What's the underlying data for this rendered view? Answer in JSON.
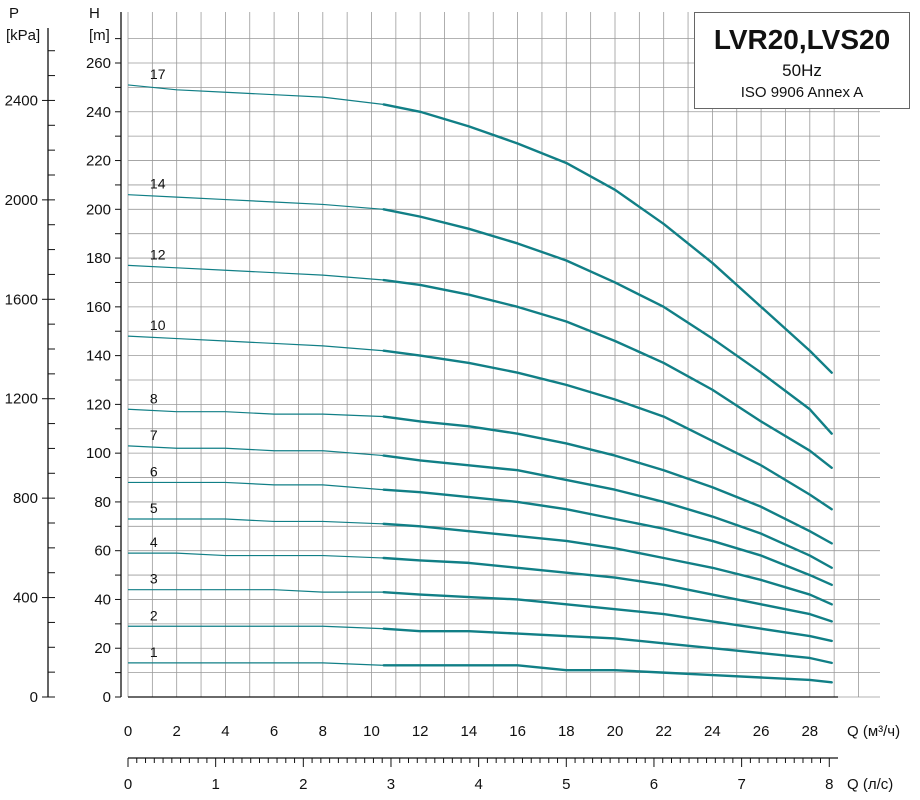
{
  "chart_data": {
    "type": "line",
    "title": "LVR20,LVS20",
    "subtitle": "50Hz",
    "standard": "ISO 9906 Annex A",
    "y_left_label": "P",
    "y_left_unit": "[kPa]",
    "y_label": "H",
    "y_unit": "[m]",
    "x_label": "Q (м³/ч)",
    "x2_label": "Q (л/с)",
    "xlim": [
      0,
      30
    ],
    "ylim": [
      0,
      270
    ],
    "x_ticks": [
      0,
      2,
      4,
      6,
      8,
      10,
      12,
      14,
      16,
      18,
      20,
      22,
      24,
      26,
      28
    ],
    "x2_ticks": [
      0,
      1,
      2,
      3,
      4,
      5,
      6,
      7,
      8
    ],
    "y_ticks": [
      0,
      20,
      40,
      60,
      80,
      100,
      120,
      140,
      160,
      180,
      200,
      220,
      240,
      260
    ],
    "p_ticks": [
      0,
      400,
      800,
      1200,
      1600,
      2000,
      2400
    ],
    "grid": true,
    "line_color": "#117f86",
    "x": [
      0,
      2,
      4,
      6,
      8,
      10.5,
      12,
      14,
      16,
      18,
      20,
      22,
      24,
      26,
      28,
      28.9
    ],
    "series": [
      {
        "name": "17",
        "values": [
          251,
          249,
          248,
          247,
          246,
          243,
          240,
          234,
          227,
          219,
          208,
          194,
          178,
          160,
          142,
          133
        ]
      },
      {
        "name": "14",
        "values": [
          206,
          205,
          204,
          203,
          202,
          200,
          197,
          192,
          186,
          179,
          170,
          160,
          147,
          133,
          118,
          108
        ]
      },
      {
        "name": "12",
        "values": [
          177,
          176,
          175,
          174,
          173,
          171,
          169,
          165,
          160,
          154,
          146,
          137,
          126,
          113,
          101,
          94
        ]
      },
      {
        "name": "10",
        "values": [
          148,
          147,
          146,
          145,
          144,
          142,
          140,
          137,
          133,
          128,
          122,
          115,
          105,
          95,
          83,
          77
        ]
      },
      {
        "name": "8",
        "values": [
          118,
          117,
          117,
          116,
          116,
          115,
          113,
          111,
          108,
          104,
          99,
          93,
          86,
          78,
          68,
          63
        ]
      },
      {
        "name": "7",
        "values": [
          103,
          102,
          102,
          101,
          101,
          99,
          97,
          95,
          93,
          89,
          85,
          80,
          74,
          67,
          58,
          53
        ]
      },
      {
        "name": "6",
        "values": [
          88,
          88,
          88,
          87,
          87,
          85,
          84,
          82,
          80,
          77,
          73,
          69,
          64,
          58,
          50,
          46
        ]
      },
      {
        "name": "5",
        "values": [
          73,
          73,
          73,
          72,
          72,
          71,
          70,
          68,
          66,
          64,
          61,
          57,
          53,
          48,
          42,
          38
        ]
      },
      {
        "name": "4",
        "values": [
          59,
          59,
          58,
          58,
          58,
          57,
          56,
          55,
          53,
          51,
          49,
          46,
          42,
          38,
          34,
          31
        ]
      },
      {
        "name": "3",
        "values": [
          44,
          44,
          44,
          44,
          43,
          43,
          42,
          41,
          40,
          38,
          36,
          34,
          31,
          28,
          25,
          23
        ]
      },
      {
        "name": "2",
        "values": [
          29,
          29,
          29,
          29,
          29,
          28,
          27,
          27,
          26,
          25,
          24,
          22,
          20,
          18,
          16,
          14
        ]
      },
      {
        "name": "1",
        "values": [
          14,
          14,
          14,
          14,
          14,
          13,
          13,
          13,
          13,
          11,
          11,
          10,
          9,
          8,
          7,
          6
        ]
      }
    ]
  }
}
